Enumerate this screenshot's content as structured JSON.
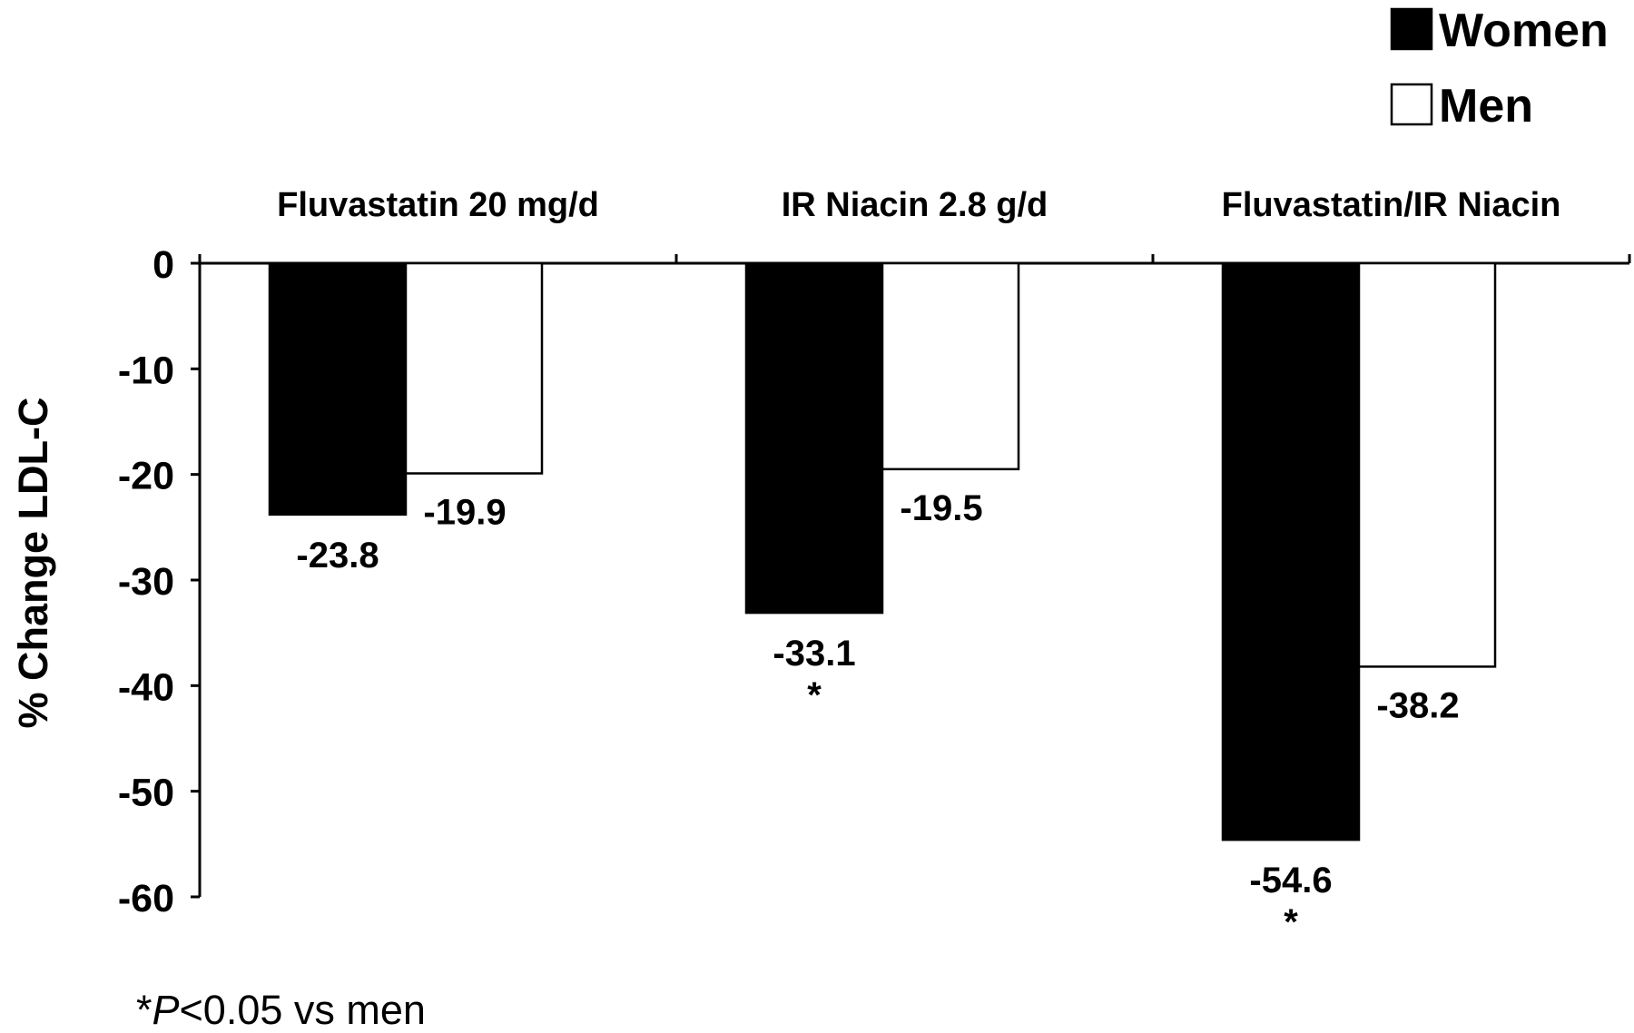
{
  "chart_data": {
    "type": "bar",
    "categories": [
      "Fluvastatin 20 mg/d",
      "IR Niacin 2.8 g/d",
      "Fluvastatin/IR Niacin"
    ],
    "series": [
      {
        "name": "Women",
        "color": "#000000",
        "values": [
          -23.8,
          -33.1,
          -54.6
        ],
        "labels": [
          "-23.8",
          "-33.1",
          "-54.6"
        ],
        "significant": [
          false,
          true,
          true
        ]
      },
      {
        "name": "Men",
        "color": "#ffffff",
        "values": [
          -19.9,
          -19.5,
          -38.2
        ],
        "labels": [
          "-19.9",
          "-19.5",
          "-38.2"
        ],
        "significant": [
          false,
          false,
          false
        ]
      }
    ],
    "ylabel": "% Change LDL-C",
    "ylim": [
      -60,
      0
    ],
    "yticks": [
      0,
      -10,
      -20,
      -30,
      -40,
      -50,
      -60
    ],
    "ytick_labels": [
      "0",
      "-10",
      "-20",
      "-30",
      "-40",
      "-50",
      "-60"
    ],
    "significance_marker": "*",
    "legend_position": "top-right",
    "grid": false
  },
  "footnote": {
    "star": "*",
    "p": "P",
    "rest": "<0.05 vs men"
  }
}
